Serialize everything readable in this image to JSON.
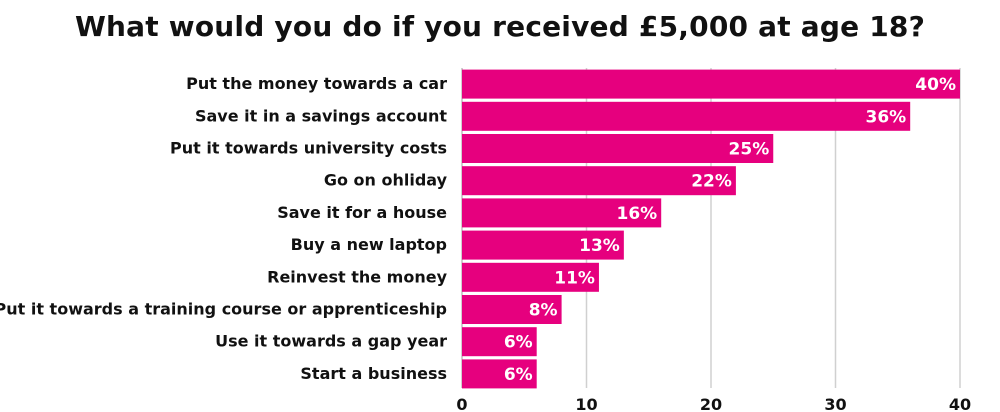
{
  "chart_data": {
    "type": "bar",
    "orientation": "horizontal",
    "title": "What would you do if you received £5,000 at age 18?",
    "categories": [
      "Put the money towards a car",
      "Save it in a savings account",
      "Put it towards university costs",
      "Go on ohliday",
      "Save it for a house",
      "Buy a new laptop",
      "Reinvest the money",
      "Put it towards a training course or apprenticeship",
      "Use it towards a gap year",
      "Start a business"
    ],
    "values": [
      40,
      36,
      25,
      22,
      16,
      13,
      11,
      8,
      6,
      6
    ],
    "data_labels": [
      "40%",
      "36%",
      "25%",
      "22%",
      "16%",
      "13%",
      "11%",
      "8%",
      "6%",
      "6%"
    ],
    "xlim": [
      0,
      40
    ],
    "xticks": [
      0,
      10,
      20,
      30,
      40
    ],
    "xtick_labels": [
      "0",
      "10",
      "20",
      "30",
      "40"
    ],
    "grid": "vertical",
    "legend": "none",
    "bar_color": "#e6007e",
    "grid_color": "#d0d0d0"
  }
}
